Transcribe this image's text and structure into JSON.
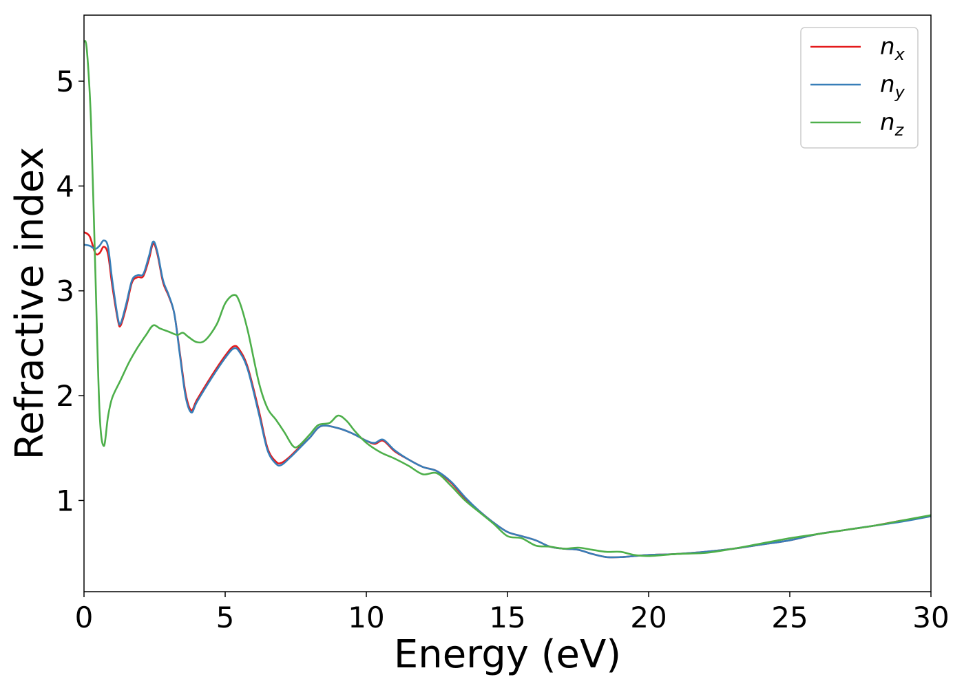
{
  "chart_data": {
    "type": "line",
    "xlabel": "Energy (eV)",
    "ylabel": "Refractive index",
    "xlim": [
      0,
      30
    ],
    "ylim": [
      0.13,
      5.63
    ],
    "xticks": [
      0,
      5,
      10,
      15,
      20,
      25,
      30
    ],
    "yticks": [
      1,
      2,
      3,
      4,
      5
    ],
    "grid": false,
    "legend_position": "top-right",
    "series": [
      {
        "name": "n_x",
        "label_base": "n",
        "label_sub": "x",
        "color": "#e41a1c",
        "points": [
          [
            0,
            3.56
          ],
          [
            0.2,
            3.52
          ],
          [
            0.4,
            3.36
          ],
          [
            0.55,
            3.36
          ],
          [
            0.7,
            3.42
          ],
          [
            0.85,
            3.35
          ],
          [
            1.0,
            3.05
          ],
          [
            1.2,
            2.72
          ],
          [
            1.3,
            2.67
          ],
          [
            1.5,
            2.85
          ],
          [
            1.7,
            3.08
          ],
          [
            1.9,
            3.13
          ],
          [
            2.1,
            3.14
          ],
          [
            2.3,
            3.3
          ],
          [
            2.45,
            3.45
          ],
          [
            2.6,
            3.35
          ],
          [
            2.8,
            3.08
          ],
          [
            3.0,
            2.95
          ],
          [
            3.2,
            2.78
          ],
          [
            3.4,
            2.4
          ],
          [
            3.6,
            2.02
          ],
          [
            3.8,
            1.86
          ],
          [
            4.0,
            1.96
          ],
          [
            4.5,
            2.18
          ],
          [
            5.0,
            2.38
          ],
          [
            5.3,
            2.47
          ],
          [
            5.5,
            2.44
          ],
          [
            5.8,
            2.27
          ],
          [
            6.2,
            1.85
          ],
          [
            6.5,
            1.5
          ],
          [
            6.8,
            1.37
          ],
          [
            7.0,
            1.36
          ],
          [
            7.3,
            1.42
          ],
          [
            7.6,
            1.5
          ],
          [
            8.0,
            1.6
          ],
          [
            8.4,
            1.71
          ],
          [
            9.0,
            1.69
          ],
          [
            9.5,
            1.64
          ],
          [
            10.0,
            1.57
          ],
          [
            10.3,
            1.54
          ],
          [
            10.6,
            1.57
          ],
          [
            11.0,
            1.47
          ],
          [
            11.5,
            1.39
          ],
          [
            12.0,
            1.32
          ],
          [
            12.5,
            1.28
          ],
          [
            13.0,
            1.17
          ],
          [
            13.5,
            1.02
          ],
          [
            14.0,
            0.9
          ],
          [
            14.5,
            0.79
          ],
          [
            15.0,
            0.7
          ],
          [
            15.5,
            0.66
          ],
          [
            16.0,
            0.62
          ],
          [
            16.5,
            0.56
          ],
          [
            17.0,
            0.54
          ],
          [
            17.5,
            0.53
          ],
          [
            18.0,
            0.49
          ],
          [
            18.5,
            0.46
          ],
          [
            19.0,
            0.46
          ],
          [
            19.5,
            0.47
          ],
          [
            20.0,
            0.48
          ],
          [
            21.0,
            0.49
          ],
          [
            22.0,
            0.51
          ],
          [
            23.0,
            0.54
          ],
          [
            24.0,
            0.58
          ],
          [
            25.0,
            0.62
          ],
          [
            26.0,
            0.68
          ],
          [
            27.0,
            0.72
          ],
          [
            28.0,
            0.76
          ],
          [
            29.0,
            0.81
          ],
          [
            30.0,
            0.85
          ]
        ]
      },
      {
        "name": "n_y",
        "label_base": "n",
        "label_sub": "y",
        "color": "#377eb8",
        "points": [
          [
            0,
            3.44
          ],
          [
            0.2,
            3.43
          ],
          [
            0.4,
            3.4
          ],
          [
            0.55,
            3.43
          ],
          [
            0.7,
            3.48
          ],
          [
            0.85,
            3.42
          ],
          [
            1.0,
            3.1
          ],
          [
            1.2,
            2.74
          ],
          [
            1.3,
            2.69
          ],
          [
            1.5,
            2.88
          ],
          [
            1.7,
            3.1
          ],
          [
            1.9,
            3.15
          ],
          [
            2.1,
            3.16
          ],
          [
            2.3,
            3.33
          ],
          [
            2.45,
            3.47
          ],
          [
            2.6,
            3.37
          ],
          [
            2.8,
            3.1
          ],
          [
            3.0,
            2.96
          ],
          [
            3.2,
            2.78
          ],
          [
            3.4,
            2.38
          ],
          [
            3.6,
            1.99
          ],
          [
            3.8,
            1.84
          ],
          [
            4.0,
            1.94
          ],
          [
            4.5,
            2.16
          ],
          [
            5.0,
            2.36
          ],
          [
            5.3,
            2.45
          ],
          [
            5.5,
            2.42
          ],
          [
            5.8,
            2.25
          ],
          [
            6.2,
            1.82
          ],
          [
            6.5,
            1.48
          ],
          [
            6.8,
            1.35
          ],
          [
            7.0,
            1.34
          ],
          [
            7.3,
            1.41
          ],
          [
            7.6,
            1.49
          ],
          [
            8.0,
            1.6
          ],
          [
            8.4,
            1.71
          ],
          [
            9.0,
            1.69
          ],
          [
            9.5,
            1.64
          ],
          [
            10.0,
            1.57
          ],
          [
            10.3,
            1.55
          ],
          [
            10.6,
            1.58
          ],
          [
            11.0,
            1.48
          ],
          [
            11.5,
            1.39
          ],
          [
            12.0,
            1.32
          ],
          [
            12.5,
            1.28
          ],
          [
            13.0,
            1.18
          ],
          [
            13.5,
            1.03
          ],
          [
            14.0,
            0.9
          ],
          [
            14.5,
            0.79
          ],
          [
            15.0,
            0.7
          ],
          [
            15.5,
            0.66
          ],
          [
            16.0,
            0.62
          ],
          [
            16.5,
            0.56
          ],
          [
            17.0,
            0.54
          ],
          [
            17.5,
            0.53
          ],
          [
            18.0,
            0.49
          ],
          [
            18.5,
            0.46
          ],
          [
            19.0,
            0.46
          ],
          [
            19.5,
            0.47
          ],
          [
            20.0,
            0.48
          ],
          [
            21.0,
            0.49
          ],
          [
            22.0,
            0.51
          ],
          [
            23.0,
            0.54
          ],
          [
            24.0,
            0.58
          ],
          [
            25.0,
            0.62
          ],
          [
            26.0,
            0.68
          ],
          [
            27.0,
            0.72
          ],
          [
            28.0,
            0.76
          ],
          [
            29.0,
            0.8
          ],
          [
            30.0,
            0.85
          ]
        ]
      },
      {
        "name": "n_z",
        "label_base": "n",
        "label_sub": "z",
        "color": "#4daf4a",
        "points": [
          [
            0,
            5.38
          ],
          [
            0.1,
            5.3
          ],
          [
            0.25,
            4.6
          ],
          [
            0.4,
            3.2
          ],
          [
            0.55,
            1.85
          ],
          [
            0.7,
            1.52
          ],
          [
            0.85,
            1.8
          ],
          [
            1.0,
            1.98
          ],
          [
            1.3,
            2.15
          ],
          [
            1.6,
            2.32
          ],
          [
            1.9,
            2.46
          ],
          [
            2.2,
            2.58
          ],
          [
            2.45,
            2.67
          ],
          [
            2.7,
            2.64
          ],
          [
            3.0,
            2.61
          ],
          [
            3.3,
            2.58
          ],
          [
            3.5,
            2.6
          ],
          [
            3.7,
            2.56
          ],
          [
            4.0,
            2.51
          ],
          [
            4.3,
            2.53
          ],
          [
            4.7,
            2.68
          ],
          [
            5.0,
            2.88
          ],
          [
            5.3,
            2.96
          ],
          [
            5.5,
            2.9
          ],
          [
            5.8,
            2.62
          ],
          [
            6.2,
            2.12
          ],
          [
            6.5,
            1.88
          ],
          [
            6.8,
            1.77
          ],
          [
            7.1,
            1.65
          ],
          [
            7.4,
            1.52
          ],
          [
            7.6,
            1.52
          ],
          [
            8.0,
            1.63
          ],
          [
            8.3,
            1.72
          ],
          [
            8.7,
            1.74
          ],
          [
            9.0,
            1.81
          ],
          [
            9.3,
            1.76
          ],
          [
            9.6,
            1.66
          ],
          [
            10.0,
            1.55
          ],
          [
            10.5,
            1.46
          ],
          [
            11.0,
            1.4
          ],
          [
            11.5,
            1.33
          ],
          [
            12.0,
            1.25
          ],
          [
            12.5,
            1.26
          ],
          [
            13.0,
            1.14
          ],
          [
            13.5,
            1.0
          ],
          [
            14.0,
            0.89
          ],
          [
            14.5,
            0.78
          ],
          [
            15.0,
            0.66
          ],
          [
            15.5,
            0.64
          ],
          [
            16.0,
            0.57
          ],
          [
            16.5,
            0.56
          ],
          [
            17.0,
            0.54
          ],
          [
            17.5,
            0.55
          ],
          [
            18.0,
            0.53
          ],
          [
            18.5,
            0.51
          ],
          [
            19.0,
            0.51
          ],
          [
            19.5,
            0.48
          ],
          [
            20.0,
            0.47
          ],
          [
            21.0,
            0.49
          ],
          [
            22.0,
            0.5
          ],
          [
            23.0,
            0.54
          ],
          [
            24.0,
            0.59
          ],
          [
            25.0,
            0.64
          ],
          [
            26.0,
            0.68
          ],
          [
            27.0,
            0.72
          ],
          [
            28.0,
            0.76
          ],
          [
            29.0,
            0.81
          ],
          [
            30.0,
            0.86
          ]
        ]
      }
    ]
  }
}
